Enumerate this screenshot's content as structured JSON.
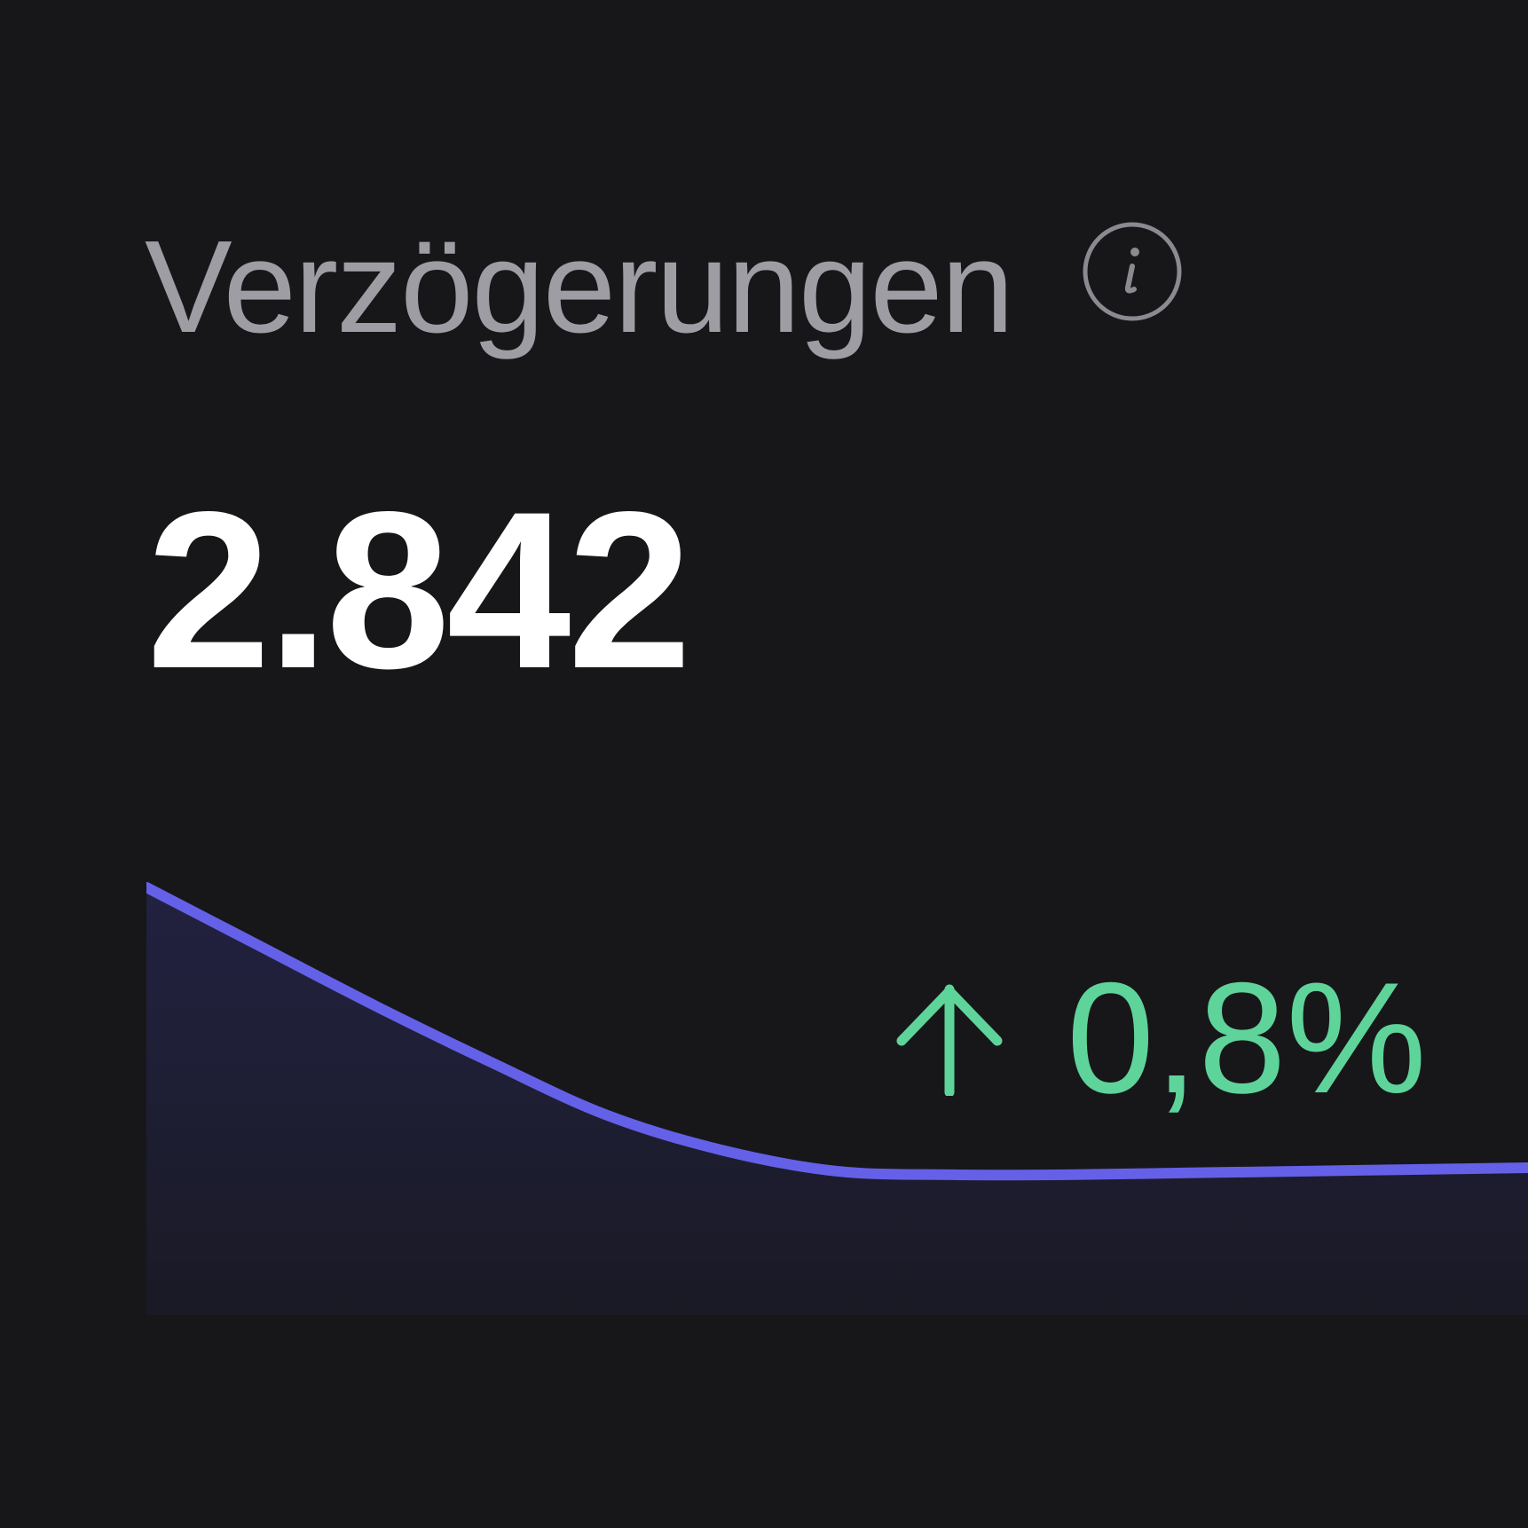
{
  "card": {
    "title": "Verzögerungen",
    "info_icon": "info-icon",
    "value": "2.842",
    "delta": {
      "direction": "up",
      "icon": "arrow-up-icon",
      "text": "0,8%"
    }
  },
  "colors": {
    "background": "#17171a",
    "line": "#6461e8",
    "positive": "#5fd49a",
    "title": "#9d9da3"
  },
  "chart_data": {
    "type": "area",
    "x": [
      0,
      1,
      2,
      3,
      4,
      5,
      6,
      7,
      8,
      9,
      10,
      11,
      12
    ],
    "values": [
      100,
      83,
      66,
      50,
      35,
      25,
      19,
      18,
      18,
      18.5,
      19,
      19.5,
      20
    ],
    "ylim": [
      0,
      100
    ],
    "grid": false,
    "axes": false
  }
}
